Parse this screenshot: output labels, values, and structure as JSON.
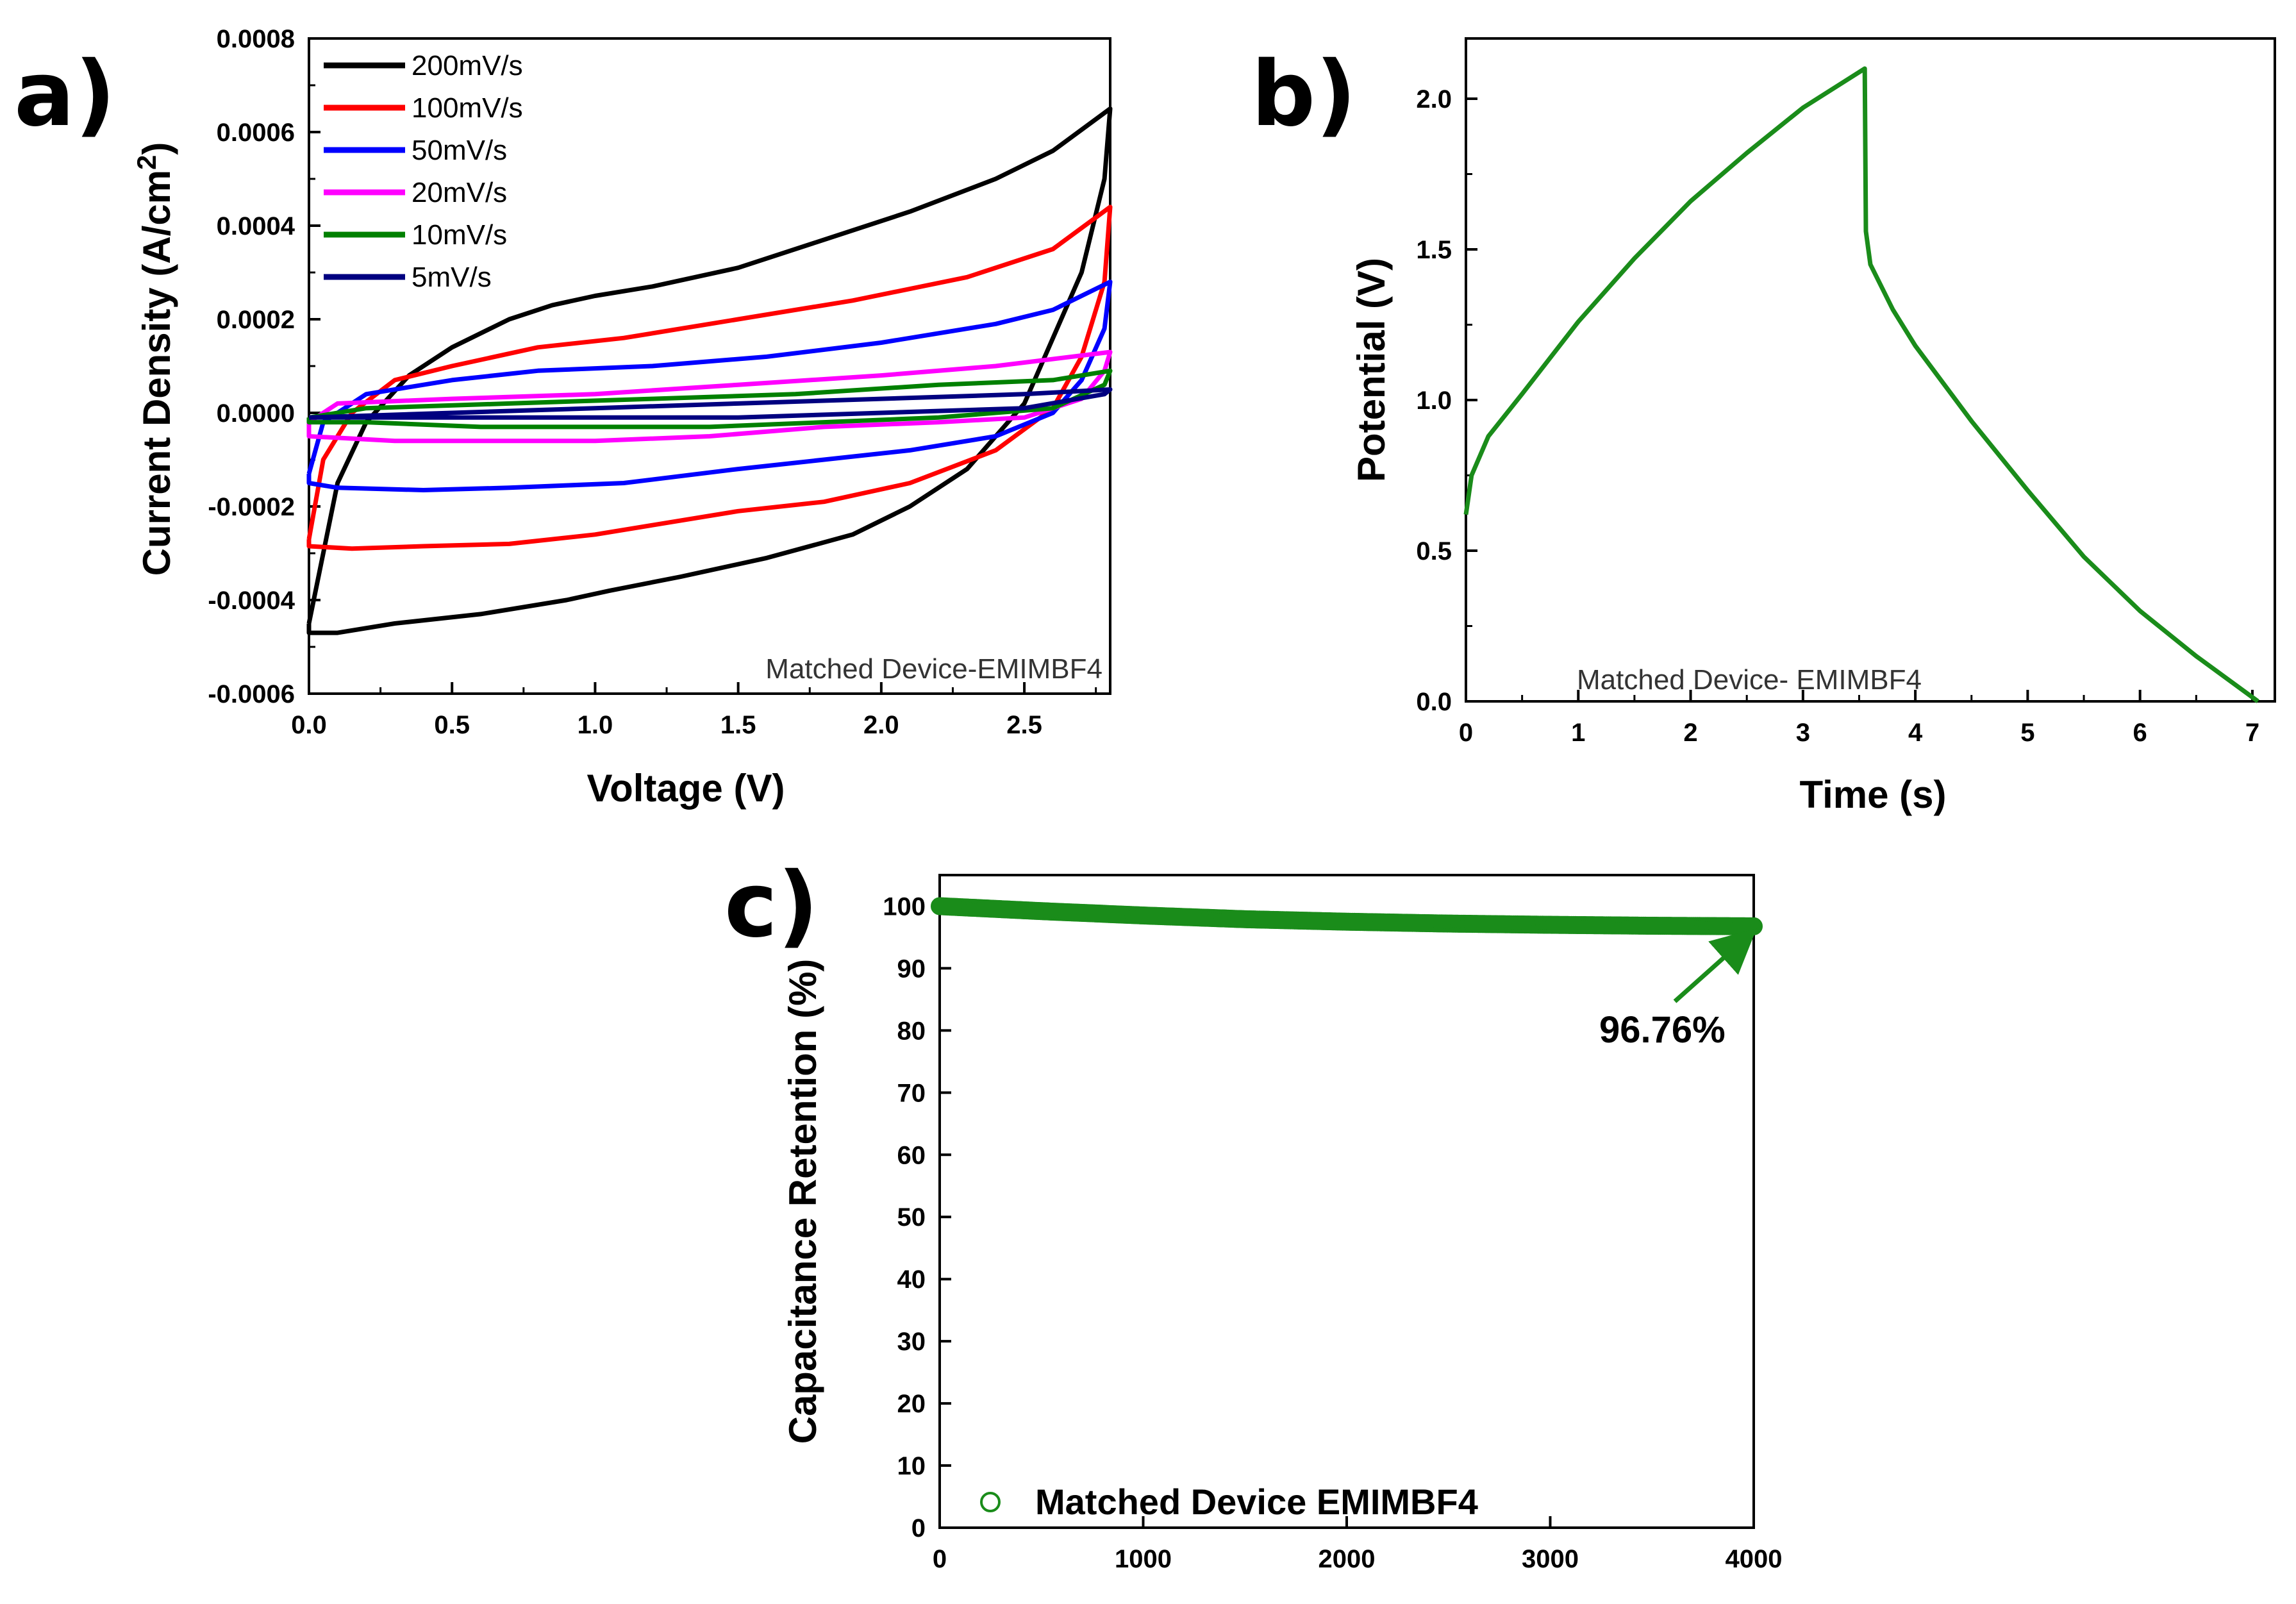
{
  "panels": [
    {
      "label": "a)"
    },
    {
      "label": "b)"
    },
    {
      "label": "c)"
    }
  ],
  "chart_data": [
    {
      "type": "line",
      "panel": "a)",
      "xlabel": "Voltage (V)",
      "ylabel": "Current Density (A/cm",
      "ylabel_sup": "2",
      "ylabel_end": ")",
      "xlim": [
        0,
        2.8
      ],
      "ylim": [
        -0.0006,
        0.0008
      ],
      "xticks": [
        "0.0",
        "0.5",
        "1.0",
        "1.5",
        "2.0",
        "2.5"
      ],
      "xtick_values": [
        0,
        0.5,
        1.0,
        1.5,
        2.0,
        2.5
      ],
      "yticks": [
        "-0.0006",
        "-0.0004",
        "-0.0002",
        "0.0000",
        "0.0002",
        "0.0004",
        "0.0006",
        "0.0008"
      ],
      "ytick_values": [
        -0.0006,
        -0.0004,
        -0.0002,
        0,
        0.0002,
        0.0004,
        0.0006,
        0.0008
      ],
      "annotation": "Matched Device-EMIMBF4",
      "legend_position": "top-left",
      "series": [
        {
          "name": "200mV/s",
          "color": "#000000",
          "x": [
            0.0,
            0.1,
            0.2,
            0.35,
            0.5,
            0.7,
            0.85,
            1.0,
            1.2,
            1.5,
            1.8,
            2.1,
            2.4,
            2.6,
            2.8,
            2.78,
            2.7,
            2.5,
            2.3,
            2.1,
            1.9,
            1.6,
            1.3,
            1.05,
            0.9,
            0.6,
            0.3,
            0.1,
            0.0,
            0.0
          ],
          "y": [
            -0.00045,
            -0.00015,
            -2e-05,
            8e-05,
            0.00014,
            0.0002,
            0.00023,
            0.00025,
            0.00027,
            0.00031,
            0.00037,
            0.00043,
            0.0005,
            0.00056,
            0.00065,
            0.0005,
            0.0003,
            2e-05,
            -0.00012,
            -0.0002,
            -0.00026,
            -0.00031,
            -0.00035,
            -0.00038,
            -0.0004,
            -0.00043,
            -0.00045,
            -0.00047,
            -0.00047,
            -0.00045
          ]
        },
        {
          "name": "100mV/s",
          "color": "#ff0000",
          "x": [
            0.0,
            0.05,
            0.15,
            0.3,
            0.5,
            0.8,
            1.1,
            1.5,
            1.9,
            2.3,
            2.6,
            2.8,
            2.78,
            2.7,
            2.6,
            2.4,
            2.1,
            1.8,
            1.5,
            1.2,
            1.0,
            0.7,
            0.4,
            0.15,
            0.0,
            0.0
          ],
          "y": [
            -0.00027,
            -0.0001,
            0.0,
            7e-05,
            0.0001,
            0.00014,
            0.00016,
            0.0002,
            0.00024,
            0.00029,
            0.00035,
            0.00044,
            0.00028,
            0.00012,
            1e-05,
            -8e-05,
            -0.00015,
            -0.00019,
            -0.00021,
            -0.00024,
            -0.00026,
            -0.00028,
            -0.000285,
            -0.00029,
            -0.000285,
            -0.00027
          ]
        },
        {
          "name": "50mV/s",
          "color": "#0000ff",
          "x": [
            0.0,
            0.05,
            0.2,
            0.5,
            0.8,
            1.2,
            1.6,
            2.0,
            2.4,
            2.6,
            2.8,
            2.78,
            2.7,
            2.6,
            2.4,
            2.1,
            1.8,
            1.5,
            1.1,
            0.7,
            0.4,
            0.1,
            0.0,
            0.0
          ],
          "y": [
            -0.00013,
            -2e-05,
            4e-05,
            7e-05,
            9e-05,
            0.0001,
            0.00012,
            0.00015,
            0.00019,
            0.00022,
            0.00028,
            0.00018,
            7e-05,
            0.0,
            -5e-05,
            -8e-05,
            -0.0001,
            -0.00012,
            -0.00015,
            -0.00016,
            -0.000165,
            -0.00016,
            -0.00015,
            -0.00013
          ]
        },
        {
          "name": "20mV/s",
          "color": "#ff00ff",
          "x": [
            0.0,
            0.1,
            0.5,
            1.0,
            1.5,
            2.0,
            2.4,
            2.8,
            2.78,
            2.7,
            2.5,
            2.2,
            1.8,
            1.4,
            1.0,
            0.6,
            0.3,
            0.0,
            0.0
          ],
          "y": [
            -2e-05,
            2e-05,
            3e-05,
            4e-05,
            6e-05,
            8e-05,
            0.0001,
            0.00013,
            9e-05,
            3e-05,
            -1e-05,
            -2e-05,
            -3e-05,
            -5e-05,
            -6e-05,
            -6e-05,
            -6e-05,
            -5e-05,
            -2e-05
          ]
        },
        {
          "name": "10mV/s",
          "color": "#008000",
          "x": [
            0.0,
            0.2,
            0.7,
            1.2,
            1.7,
            2.2,
            2.6,
            2.8,
            2.78,
            2.6,
            2.2,
            1.8,
            1.4,
            1.0,
            0.6,
            0.2,
            0.0,
            0.0
          ],
          "y": [
            -1e-05,
            1e-05,
            2e-05,
            3e-05,
            4e-05,
            6e-05,
            7e-05,
            9e-05,
            6e-05,
            1e-05,
            -1e-05,
            -2e-05,
            -3e-05,
            -3e-05,
            -3e-05,
            -2e-05,
            -2e-05,
            -1e-05
          ]
        },
        {
          "name": "5mV/s",
          "color": "#000080",
          "x": [
            0.0,
            0.5,
            1.0,
            1.5,
            2.0,
            2.5,
            2.8,
            2.78,
            2.5,
            2.0,
            1.5,
            1.0,
            0.5,
            0.0,
            0.0
          ],
          "y": [
            -1e-05,
            0.0,
            1e-05,
            2e-05,
            3e-05,
            4e-05,
            5e-05,
            4e-05,
            1e-05,
            0.0,
            -1e-05,
            -1e-05,
            -1e-05,
            -1e-05,
            -1e-05
          ]
        }
      ]
    },
    {
      "type": "line",
      "panel": "b)",
      "xlabel": "Time (s)",
      "ylabel": "Potential (V)",
      "xlim": [
        0,
        7.2
      ],
      "ylim": [
        0,
        2.2
      ],
      "xticks": [
        "0",
        "1",
        "2",
        "3",
        "4",
        "5",
        "6",
        "7"
      ],
      "xtick_values": [
        0,
        1,
        2,
        3,
        4,
        5,
        6,
        7
      ],
      "yticks": [
        "0.0",
        "0.5",
        "1.0",
        "1.5",
        "2.0"
      ],
      "ytick_values": [
        0,
        0.5,
        1.0,
        1.5,
        2.0
      ],
      "annotation": "Matched Device- EMIMBF4",
      "series": [
        {
          "name": "",
          "color": "#1a8c1a",
          "x": [
            0.0,
            0.05,
            0.2,
            0.5,
            1.0,
            1.5,
            2.0,
            2.5,
            3.0,
            3.55,
            3.56,
            3.6,
            3.8,
            4.0,
            4.5,
            5.0,
            5.5,
            6.0,
            6.5,
            7.05
          ],
          "y": [
            0.62,
            0.75,
            0.88,
            1.02,
            1.26,
            1.47,
            1.66,
            1.82,
            1.97,
            2.1,
            1.56,
            1.45,
            1.3,
            1.18,
            0.93,
            0.7,
            0.48,
            0.3,
            0.15,
            0.0
          ]
        }
      ]
    },
    {
      "type": "scatter",
      "panel": "c)",
      "xlabel": "",
      "ylabel": "Capacitance Retention (%)",
      "xlim": [
        0,
        4000
      ],
      "ylim": [
        0,
        105
      ],
      "xticks": [
        "0",
        "1000",
        "2000",
        "3000",
        "4000"
      ],
      "xtick_values": [
        0,
        1000,
        2000,
        3000,
        4000
      ],
      "yticks": [
        "0",
        "10",
        "20",
        "30",
        "40",
        "50",
        "60",
        "70",
        "80",
        "90",
        "100"
      ],
      "ytick_values": [
        0,
        10,
        20,
        30,
        40,
        50,
        60,
        70,
        80,
        90,
        100
      ],
      "annotation": "96.76%",
      "legend_position": "bottom-left",
      "series": [
        {
          "name": "Matched Device EMIMBF4",
          "color": "#1a8c1a",
          "x": [
            0,
            500,
            1000,
            1500,
            2000,
            2500,
            3000,
            3500,
            4000
          ],
          "y": [
            100.0,
            99.2,
            98.5,
            97.9,
            97.5,
            97.2,
            97.0,
            96.85,
            96.76
          ]
        }
      ]
    }
  ]
}
